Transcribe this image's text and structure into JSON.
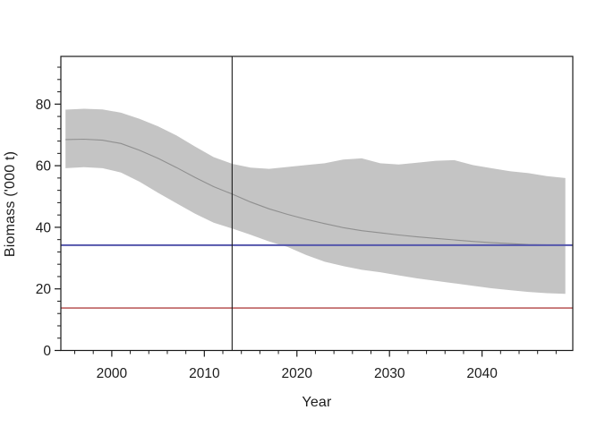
{
  "chart_data": {
    "type": "area",
    "title": "",
    "xlabel": "Year",
    "ylabel": "Biomass ('000 t)",
    "grid": false,
    "legend": false,
    "axes": {
      "xlim": [
        1994.5,
        2049.8
      ],
      "ylim": [
        0,
        95.5
      ],
      "xticks": [
        2000,
        2010,
        2020,
        2030,
        2040
      ],
      "yticks": [
        0,
        20,
        40,
        60,
        80
      ],
      "x_minor_step": 2,
      "y_minor_step": 4
    },
    "x": [
      1995,
      1997,
      1999,
      2001,
      2003,
      2005,
      2007,
      2009,
      2011,
      2013,
      2015,
      2017,
      2019,
      2021,
      2023,
      2025,
      2027,
      2029,
      2031,
      2033,
      2035,
      2037,
      2039,
      2041,
      2043,
      2045,
      2047,
      2049
    ],
    "series": [
      {
        "name": "median biomass",
        "values": [
          68.5,
          68.6,
          68.3,
          67.2,
          65.0,
          62.4,
          59.4,
          56.2,
          53.2,
          50.8,
          48.2,
          46.0,
          44.2,
          42.6,
          41.2,
          39.9,
          38.9,
          38.2,
          37.5,
          36.9,
          36.4,
          35.9,
          35.4,
          35.0,
          34.7,
          34.4,
          34.3,
          34.2
        ]
      },
      {
        "name": "band upper bound",
        "values": [
          78.2,
          78.5,
          78.3,
          77.2,
          75.2,
          72.8,
          69.8,
          66.2,
          62.8,
          60.6,
          59.4,
          59.0,
          59.6,
          60.2,
          60.8,
          62.0,
          62.4,
          60.8,
          60.4,
          61.0,
          61.6,
          61.8,
          60.2,
          59.2,
          58.2,
          57.6,
          56.6,
          56.0
        ]
      },
      {
        "name": "band lower bound",
        "values": [
          59.2,
          59.5,
          59.2,
          57.8,
          54.8,
          51.2,
          47.8,
          44.4,
          41.5,
          39.6,
          37.6,
          35.4,
          33.6,
          31.0,
          28.8,
          27.4,
          26.2,
          25.4,
          24.4,
          23.4,
          22.6,
          21.8,
          21.0,
          20.2,
          19.6,
          19.0,
          18.6,
          18.4
        ]
      }
    ],
    "reference_lines": {
      "blue_horizontal": {
        "value": 34.2,
        "color": "#5456ac"
      },
      "red_horizontal": {
        "value": 13.8,
        "color": "#b04444"
      },
      "black_vertical": {
        "value": 2013,
        "color": "#1a1a1a"
      }
    },
    "colors": {
      "band": "#c4c4c4",
      "median_line": "#8f8f8f",
      "axis": "#1a1a1a",
      "background": "#ffffff"
    }
  }
}
